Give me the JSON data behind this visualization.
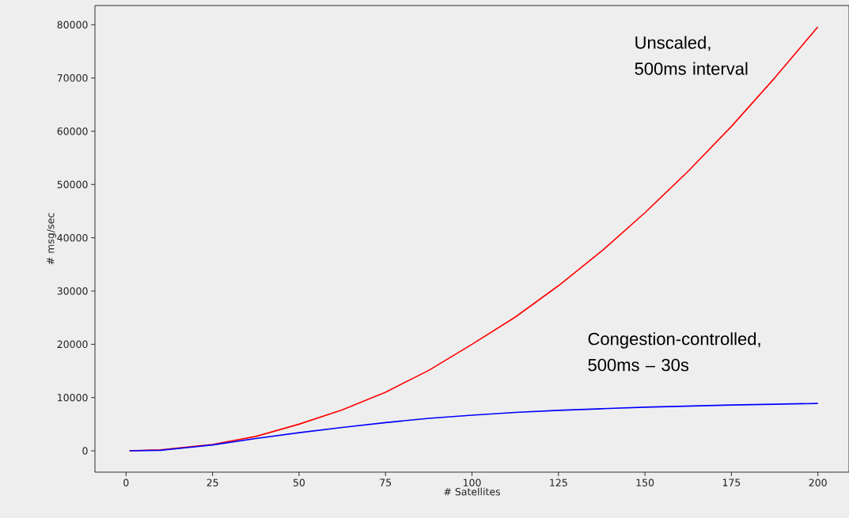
{
  "chart_data": {
    "type": "line",
    "xlabel": "# Satellites",
    "ylabel": "# msg/sec",
    "x": [
      1,
      10,
      25,
      37.5,
      50,
      62.5,
      75,
      87.5,
      100,
      112.5,
      125,
      137.5,
      150,
      162.5,
      175,
      187.5,
      200
    ],
    "series": [
      {
        "name": "Unscaled, 500ms interval",
        "color": "#ff0000",
        "values": [
          0,
          200,
          1200,
          2700,
          5000,
          7700,
          11000,
          15100,
          20000,
          25100,
          31000,
          37500,
          44700,
          52500,
          60900,
          70000,
          79600
        ]
      },
      {
        "name": "Congestion-controlled, 500ms – 30s",
        "color": "#0000ff",
        "values": [
          0,
          100,
          1100,
          2300,
          3400,
          4400,
          5300,
          6100,
          6700,
          7200,
          7600,
          7900,
          8200,
          8400,
          8600,
          8750,
          8900
        ]
      }
    ],
    "xlim": [
      -9,
      209
    ],
    "ylim": [
      -4000,
      83600
    ],
    "xticks": [
      0,
      25,
      50,
      75,
      100,
      125,
      150,
      175,
      200
    ],
    "yticks": [
      0,
      10000,
      20000,
      30000,
      40000,
      50000,
      60000,
      70000,
      80000
    ],
    "grid": false,
    "marker": "none",
    "line_style": "solid"
  }
}
